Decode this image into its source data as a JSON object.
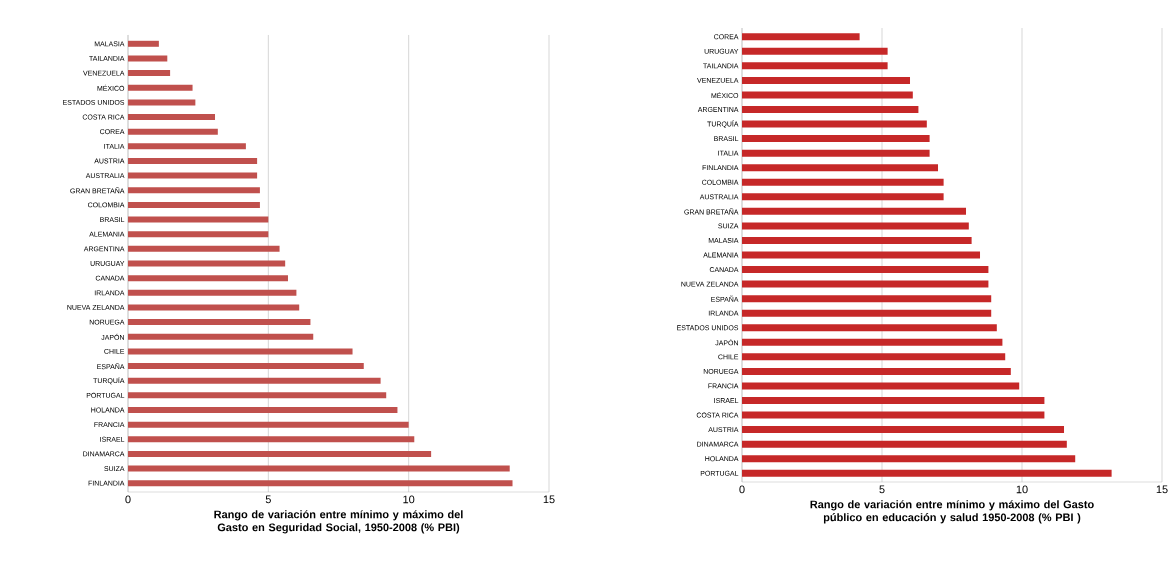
{
  "chart_data": [
    {
      "type": "bar",
      "orientation": "horizontal",
      "xlabel": "Rango de variación entre mínimo y máximo del Gasto en Seguridad Social, 1950-2008  (% PBI)",
      "categories": [
        "MALASIA",
        "TAILANDIA",
        "VENEZUELA",
        "MÉXICO",
        "ESTADOS UNIDOS",
        "COSTA RICA",
        "COREA",
        "ITALIA",
        "AUSTRIA",
        "AUSTRALIA",
        "GRAN BRETAÑA",
        "COLOMBIA",
        "BRASIL",
        "ALEMANIA",
        "ARGENTINA",
        "URUGUAY",
        "CANADA",
        "IRLANDA",
        "NUEVA ZELANDA",
        "NORUEGA",
        "JAPÓN",
        "CHILE",
        "ESPAÑA",
        "TURQUÍA",
        "PORTUGAL",
        "HOLANDA",
        "FRANCIA",
        "ISRAEL",
        "DINAMARCA",
        "SUIZA",
        "FINLANDIA"
      ],
      "values": [
        1.1,
        1.4,
        1.5,
        2.3,
        2.4,
        3.1,
        3.2,
        4.2,
        4.6,
        4.6,
        4.7,
        4.7,
        5.0,
        5.0,
        5.4,
        5.6,
        5.7,
        6.0,
        6.1,
        6.5,
        6.6,
        8.0,
        8.4,
        9.0,
        9.2,
        9.6,
        10.0,
        10.2,
        10.8,
        13.6,
        13.7
      ],
      "color": "#c0504d",
      "xlim": [
        0,
        15
      ],
      "xticks": [
        0,
        5,
        10,
        15
      ],
      "grid": "x"
    },
    {
      "type": "bar",
      "orientation": "horizontal",
      "xlabel": "Rango de variación entre mínimo y máximo del Gasto público en educación y salud 1950-2008 (% PBI )",
      "categories": [
        "COREA",
        "URUGUAY",
        "TAILANDIA",
        "VENEZUELA",
        "MÉXICO",
        "ARGENTINA",
        "TURQUÍA",
        "BRASIL",
        "ITALIA",
        "FINLANDIA",
        "COLOMBIA",
        "AUSTRALIA",
        "GRAN BRETAÑA",
        "SUIZA",
        "MALASIA",
        "ALEMANIA",
        "CANADA",
        "NUEVA ZELANDA",
        "ESPAÑA",
        "IRLANDA",
        "ESTADOS UNIDOS",
        "JAPÓN",
        "CHILE",
        "NORUEGA",
        "FRANCIA",
        "ISRAEL",
        "COSTA RICA",
        "AUSTRIA",
        "DINAMARCA",
        "HOLANDA",
        "PORTUGAL"
      ],
      "values": [
        4.2,
        5.2,
        5.2,
        6.0,
        6.1,
        6.3,
        6.6,
        6.7,
        6.7,
        7.0,
        7.2,
        7.2,
        8.0,
        8.1,
        8.2,
        8.5,
        8.8,
        8.8,
        8.9,
        8.9,
        9.1,
        9.3,
        9.4,
        9.6,
        9.9,
        10.8,
        10.8,
        11.5,
        11.6,
        11.9,
        13.2
      ],
      "color": "#c62828",
      "xlim": [
        0,
        15
      ],
      "xticks": [
        0,
        5,
        10,
        15
      ],
      "grid": "x"
    }
  ]
}
